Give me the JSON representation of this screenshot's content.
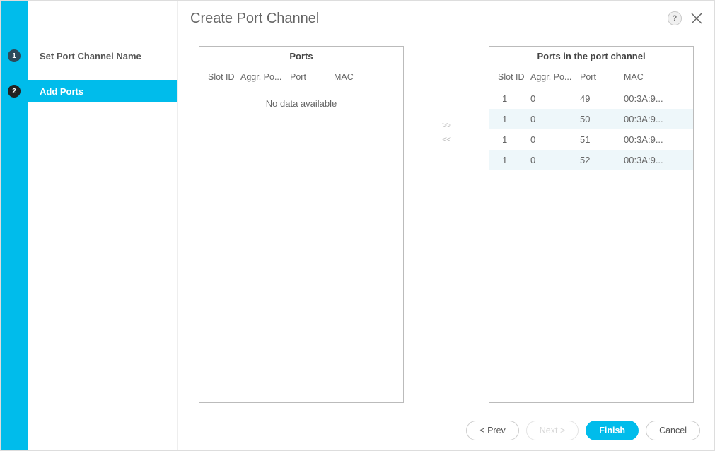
{
  "colors": {
    "accent": "#00bceb",
    "step_done_bg": "#2b4a5a",
    "step_active_bg": "#222",
    "border": "#bbb",
    "text": "#666",
    "row_alt_bg": "#eef7fa"
  },
  "dialog": {
    "title": "Create Port Channel"
  },
  "sidebar": {
    "steps": [
      {
        "num": "1",
        "label": "Set Port Channel Name",
        "state": "done"
      },
      {
        "num": "2",
        "label": "Add Ports",
        "state": "active"
      }
    ]
  },
  "header": {
    "help_label": "?",
    "close_label": "close"
  },
  "tables": {
    "columns": {
      "slot": "Slot ID",
      "aggr": "Aggr. Po...",
      "port": "Port",
      "mac": "MAC"
    },
    "left": {
      "title": "Ports",
      "empty_text": "No data available",
      "rows": []
    },
    "right": {
      "title": "Ports in the port channel",
      "rows": [
        {
          "slot": "1",
          "aggr": "0",
          "port": "49",
          "mac": "00:3A:9..."
        },
        {
          "slot": "1",
          "aggr": "0",
          "port": "50",
          "mac": "00:3A:9..."
        },
        {
          "slot": "1",
          "aggr": "0",
          "port": "51",
          "mac": "00:3A:9..."
        },
        {
          "slot": "1",
          "aggr": "0",
          "port": "52",
          "mac": "00:3A:9..."
        }
      ]
    }
  },
  "transfer": {
    "add": ">>",
    "remove": "<<"
  },
  "footer": {
    "prev": "< Prev",
    "next": "Next >",
    "finish": "Finish",
    "cancel": "Cancel"
  }
}
